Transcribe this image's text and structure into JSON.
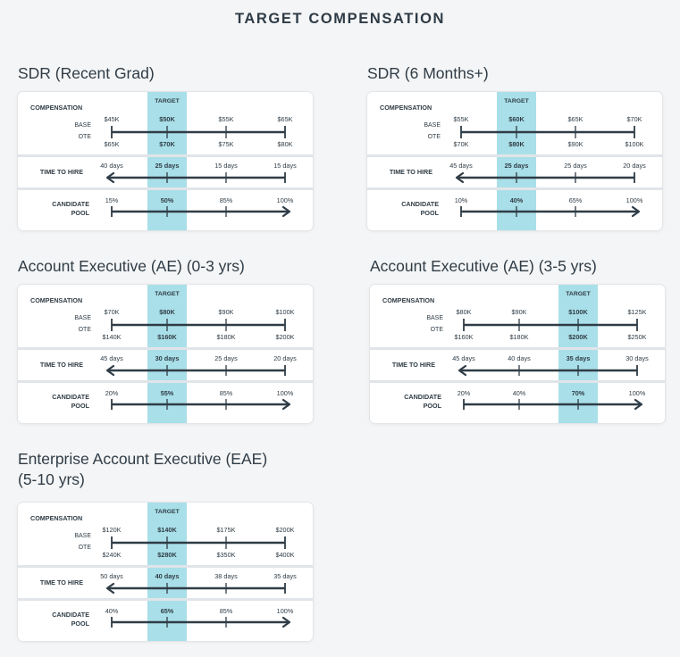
{
  "title": "TARGET COMPENSATION",
  "labels": {
    "compensation": "COMPENSATION",
    "base": "BASE",
    "ote": "OTE",
    "target": "TARGET",
    "time_to_hire": "TIME TO HIRE",
    "candidate_line1": "CANDIDATE",
    "candidate_line2": "POOL"
  },
  "colors": {
    "target_band": "#a9dfe8",
    "line": "#2f3c46",
    "divider": "#e1e5e9",
    "card": "#ffffff"
  },
  "chart_data": [
    {
      "type": "table",
      "title": "SDR (Recent Grad)",
      "target_index": 1,
      "base": [
        "$45K",
        "$50K",
        "$55K",
        "$65K"
      ],
      "ote": [
        "$65K",
        "$70K",
        "$75K",
        "$80K"
      ],
      "time_to_hire": [
        "40 days",
        "25 days",
        "15 days",
        "15 days"
      ],
      "candidate_pool": [
        "15%",
        "50%",
        "85%",
        "100%"
      ]
    },
    {
      "type": "table",
      "title": "SDR (6 Months+)",
      "target_index": 1,
      "base": [
        "$55K",
        "$60K",
        "$65K",
        "$70K"
      ],
      "ote": [
        "$70K",
        "$80K",
        "$90K",
        "$100K"
      ],
      "time_to_hire": [
        "45 days",
        "25 days",
        "25 days",
        "20 days"
      ],
      "candidate_pool": [
        "10%",
        "40%",
        "65%",
        "100%"
      ]
    },
    {
      "type": "table",
      "title": "Account Executive (AE) (0-3 yrs)",
      "target_index": 1,
      "base": [
        "$70K",
        "$80K",
        "$90K",
        "$100K"
      ],
      "ote": [
        "$140K",
        "$160K",
        "$180K",
        "$200K"
      ],
      "time_to_hire": [
        "45 days",
        "30 days",
        "25 days",
        "20 days"
      ],
      "candidate_pool": [
        "20%",
        "55%",
        "85%",
        "100%"
      ]
    },
    {
      "type": "table",
      "title": "Account Executive (AE) (3-5 yrs)",
      "target_index": 2,
      "base": [
        "$80K",
        "$90K",
        "$100K",
        "$125K"
      ],
      "ote": [
        "$160K",
        "$180K",
        "$200K",
        "$250K"
      ],
      "time_to_hire": [
        "45 days",
        "40 days",
        "35 days",
        "30 days"
      ],
      "candidate_pool": [
        "20%",
        "40%",
        "70%",
        "100%"
      ]
    },
    {
      "type": "table",
      "title": "Enterprise Account Executive (EAE) (5-10 yrs)",
      "title_lines": [
        "Enterprise Account Executive (EAE)",
        "(5-10 yrs)"
      ],
      "target_index": 1,
      "base": [
        "$120K",
        "$140K",
        "$175K",
        "$200K"
      ],
      "ote": [
        "$240K",
        "$280K",
        "$350K",
        "$400K"
      ],
      "time_to_hire": [
        "50 days",
        "40 days",
        "38 days",
        "35 days"
      ],
      "candidate_pool": [
        "40%",
        "65%",
        "85%",
        "100%"
      ]
    }
  ]
}
